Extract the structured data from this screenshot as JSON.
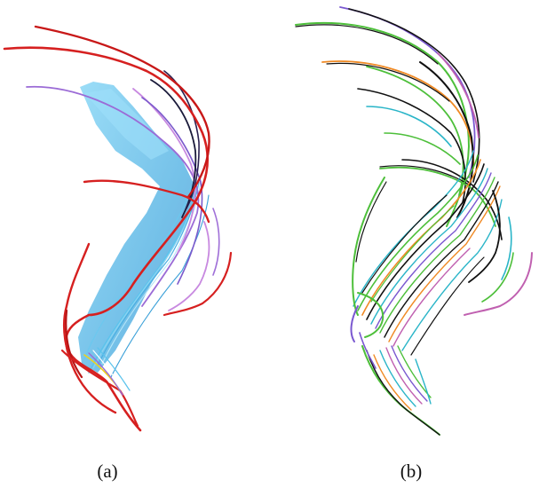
{
  "figure": {
    "panels": [
      {
        "id": "a",
        "caption": "(a)",
        "description_colors": [
          "#d62020",
          "#4fb9e6",
          "#9b6bd6",
          "#c889e0",
          "#1a1a3a",
          "#f2d21a"
        ]
      },
      {
        "id": "b",
        "caption": "(b)",
        "description_colors": [
          "#111111",
          "#4dbf3a",
          "#f08a24",
          "#2ab5c8",
          "#7a58d0",
          "#c060b0"
        ]
      }
    ]
  }
}
